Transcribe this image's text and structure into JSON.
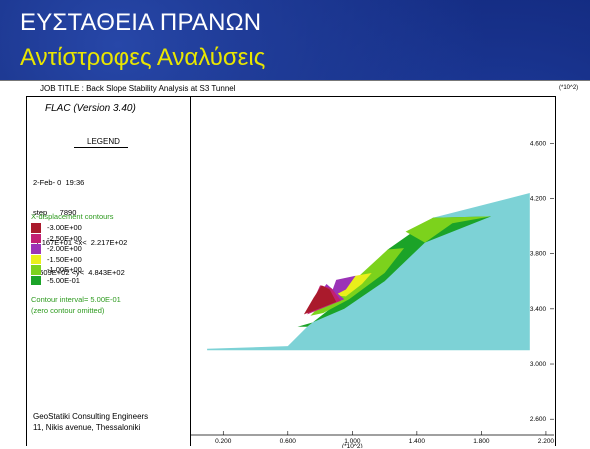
{
  "slide": {
    "title": "ΕΥΣΤΑΘΕΙΑ ΠΡΑΝΩΝ",
    "subtitle": "Αντίστροφες Αναλύσεις"
  },
  "header": {
    "job_title": "JOB TITLE :  Back Slope Stability Analysis at S3 Tunnel",
    "scale_top": "(*10^2)"
  },
  "legend": {
    "software": "FLAC (Version 3.40)",
    "heading": "LEGEND",
    "date": "2-Feb- 0  19:36",
    "step": "step      7890",
    "x_range": "-1.167E+01 <x<  2.217E+02",
    "y_range": "2.509E+02 <y<  4.843E+02",
    "contour_title": "X-displacement contours",
    "interval": "Contour interval=  5.00E-01",
    "interval_note": "(zero contour omitted)"
  },
  "footer": {
    "company": "GeoStatiki Consulting Engineers",
    "address": "11, Nikis avenue, Thessaloniki"
  },
  "colors": {
    "background": "#0a1a55",
    "title": "#ffffff",
    "subtitle": "#e9e600",
    "legend_green_text": "#2d9a1e"
  },
  "chart_data": {
    "type": "area",
    "xlabel": "(*10^2)",
    "ylabel": "(*10^2)",
    "x_ticks": [
      "0.200",
      "0.600",
      "1.000",
      "1.400",
      "1.800",
      "2.200"
    ],
    "y_ticks": [
      "4.600",
      "4.200",
      "3.800",
      "3.400",
      "3.000",
      "2.600"
    ],
    "xlim": [
      0.0,
      2.25
    ],
    "ylim": [
      2.5,
      4.95
    ],
    "contours": [
      {
        "label": "-3.00E+00",
        "value": -3.0,
        "color": "#aa1a2c"
      },
      {
        "label": "-2.50E+00",
        "value": -2.5,
        "color": "#c21f73"
      },
      {
        "label": "-2.00E+00",
        "value": -2.0,
        "color": "#9b33b7"
      },
      {
        "label": "-1.50E+00",
        "value": -1.5,
        "color": "#e9ef1b"
      },
      {
        "label": "-1.00E+00",
        "value": -1.0,
        "color": "#7cd21c"
      },
      {
        "label": "-5.00E-01",
        "value": -0.5,
        "color": "#1ba328"
      },
      {
        "label": "",
        "value": 0.0,
        "color": "#7dd2d6"
      }
    ],
    "regions": [
      {
        "level": 0.0,
        "points": [
          [
            0.1,
            3.11
          ],
          [
            0.6,
            3.13
          ],
          [
            0.72,
            3.27
          ],
          [
            0.95,
            3.48
          ],
          [
            1.2,
            3.77
          ],
          [
            1.5,
            4.06
          ],
          [
            2.1,
            4.24
          ],
          [
            2.1,
            3.1
          ],
          [
            0.1,
            3.1
          ]
        ]
      },
      {
        "level": -0.5,
        "points": [
          [
            0.66,
            3.27
          ],
          [
            0.75,
            3.3
          ],
          [
            0.95,
            3.4
          ],
          [
            1.2,
            3.6
          ],
          [
            1.45,
            3.88
          ],
          [
            1.86,
            4.07
          ],
          [
            1.5,
            4.06
          ],
          [
            1.22,
            3.83
          ],
          [
            0.95,
            3.48
          ],
          [
            0.72,
            3.27
          ]
        ]
      },
      {
        "level": -1.0,
        "points": [
          [
            1.33,
            3.96
          ],
          [
            1.45,
            3.88
          ],
          [
            1.62,
            4.02
          ],
          [
            1.86,
            4.07
          ],
          [
            1.5,
            4.06
          ]
        ]
      },
      {
        "level": -1.0,
        "points": [
          [
            0.74,
            3.35
          ],
          [
            0.82,
            3.37
          ],
          [
            0.98,
            3.47
          ],
          [
            1.2,
            3.66
          ],
          [
            1.32,
            3.84
          ],
          [
            1.22,
            3.83
          ],
          [
            0.95,
            3.54
          ],
          [
            0.88,
            3.52
          ]
        ]
      },
      {
        "level": -1.5,
        "points": [
          [
            0.86,
            3.5
          ],
          [
            0.96,
            3.49
          ],
          [
            1.06,
            3.58
          ],
          [
            1.12,
            3.66
          ],
          [
            1.02,
            3.64
          ]
        ]
      },
      {
        "level": -2.0,
        "points": [
          [
            0.86,
            3.48
          ],
          [
            0.96,
            3.54
          ],
          [
            1.02,
            3.64
          ],
          [
            0.9,
            3.61
          ]
        ]
      },
      {
        "level": -2.0,
        "points": [
          [
            0.74,
            3.38
          ],
          [
            0.95,
            3.47
          ],
          [
            0.84,
            3.58
          ],
          [
            0.79,
            3.5
          ]
        ]
      },
      {
        "level": -2.5,
        "points": [
          [
            0.72,
            3.36
          ],
          [
            0.93,
            3.46
          ],
          [
            0.87,
            3.55
          ],
          [
            0.8,
            3.57
          ]
        ]
      },
      {
        "level": -3.0,
        "points": [
          [
            0.7,
            3.36
          ],
          [
            0.9,
            3.45
          ],
          [
            0.86,
            3.54
          ],
          [
            0.81,
            3.57
          ],
          [
            0.76,
            3.48
          ]
        ]
      }
    ]
  }
}
